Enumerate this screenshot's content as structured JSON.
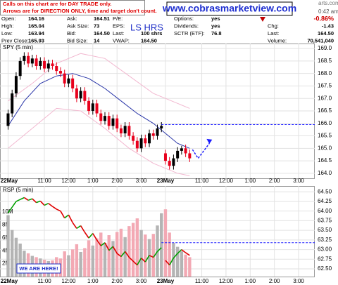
{
  "header": {
    "notes": [
      "Calls on this chart are for DAY TRADE only.",
      "Arrows are for DIRECTION ONLY, time and target don't count."
    ],
    "url": "www.cobrasmarketview.com",
    "symbol_text": "LS HRS",
    "site_fragment": "arts.com",
    "time": "0:42 am",
    "change_pct": "-0.86%",
    "columns": [
      [
        {
          "label": "Open:",
          "value": "164.16"
        },
        {
          "label": "High:",
          "value": "165.04"
        },
        {
          "label": "Low:",
          "value": "163.94"
        },
        {
          "label": "Prev Close:",
          "value": "165.93"
        }
      ],
      [
        {
          "label": "Ask:",
          "value": "164.51"
        },
        {
          "label": "Ask Size:",
          "value": "73"
        },
        {
          "label": "Bid:",
          "value": "164.50"
        },
        {
          "label": "Bid Size:",
          "value": "14"
        }
      ],
      [
        {
          "label": "P/E:"
        },
        {
          "label": "EPS:"
        },
        {
          "label": "Last:",
          "value": "100 shrs"
        },
        {
          "label": "VWAP:",
          "value": "164.50"
        }
      ],
      [
        {
          "label": "Options:",
          "value": "yes"
        },
        {
          "label": "Dividends:",
          "value": "yes"
        },
        {
          "label": "SCTR (ETF):",
          "value": "76.8"
        }
      ],
      [
        {
          "label": "Chg:",
          "value": "-1.43"
        },
        {
          "label": "Last:",
          "value": "164.50"
        },
        {
          "label": "Volume:",
          "value": "70,541,040"
        }
      ]
    ]
  },
  "chart_data": [
    {
      "type": "candlestick",
      "title": "SPY (5 min)",
      "xlim": [
        -2,
        76
      ],
      "xticks": [
        {
          "value": 0,
          "label": "22May"
        },
        {
          "value": 9,
          "label": "11:00"
        },
        {
          "value": 15,
          "label": "12:00"
        },
        {
          "value": 21,
          "label": "1:00"
        },
        {
          "value": 27,
          "label": "2:00"
        },
        {
          "value": 33,
          "label": "3:00"
        },
        {
          "value": 39,
          "label": "23May"
        },
        {
          "value": 48,
          "label": "11:00"
        },
        {
          "value": 54,
          "label": "12:00"
        },
        {
          "value": 60,
          "label": "1:00"
        },
        {
          "value": 66,
          "label": "2:00"
        },
        {
          "value": 72,
          "label": "3:00"
        }
      ],
      "ylim": [
        163.8,
        169.2
      ],
      "yticks": [
        {
          "value": 164,
          "label": "164.0"
        },
        {
          "value": 164.5,
          "label": "164.5"
        },
        {
          "value": 165,
          "label": "165.0"
        },
        {
          "value": 165.5,
          "label": "165.5"
        },
        {
          "value": 166,
          "label": "166.0"
        },
        {
          "value": 166.5,
          "label": "166.5"
        },
        {
          "value": 167,
          "label": "167.0"
        },
        {
          "value": 167.5,
          "label": "167.5"
        },
        {
          "value": 168,
          "label": "168.0"
        },
        {
          "value": 168.5,
          "label": "168.5"
        },
        {
          "value": 169,
          "label": "169.0"
        }
      ],
      "grid": true,
      "up_color": "#000000",
      "down_color": "#e8001c",
      "candles": [
        [
          165.9,
          166.55,
          165.75,
          166.4
        ],
        [
          166.4,
          167.35,
          166.25,
          167.2
        ],
        [
          167.2,
          168.05,
          167.05,
          167.9
        ],
        [
          167.9,
          168.65,
          167.75,
          168.5
        ],
        [
          168.5,
          168.85,
          168.35,
          168.7
        ],
        [
          168.7,
          168.85,
          168.25,
          168.4
        ],
        [
          168.4,
          168.75,
          168.25,
          168.6
        ],
        [
          168.6,
          168.75,
          168.15,
          168.3
        ],
        [
          168.3,
          168.65,
          168.15,
          168.5
        ],
        [
          168.5,
          168.65,
          168.05,
          168.2
        ],
        [
          168.2,
          168.55,
          168.05,
          168.4
        ],
        [
          168.4,
          168.55,
          168.15,
          168.3
        ],
        [
          168.3,
          168.45,
          167.95,
          168.1
        ],
        [
          168.1,
          168.25,
          167.85,
          168.0
        ],
        [
          168.0,
          168.15,
          167.45,
          167.6
        ],
        [
          167.6,
          167.95,
          167.45,
          167.8
        ],
        [
          167.8,
          167.95,
          167.25,
          167.4
        ],
        [
          167.4,
          167.55,
          166.85,
          167.0
        ],
        [
          167.0,
          167.45,
          166.85,
          167.3
        ],
        [
          167.3,
          167.45,
          166.75,
          166.9
        ],
        [
          166.9,
          167.05,
          166.35,
          166.5
        ],
        [
          166.5,
          166.95,
          166.35,
          166.8
        ],
        [
          166.8,
          166.95,
          166.25,
          166.4
        ],
        [
          166.4,
          166.55,
          165.95,
          166.1
        ],
        [
          166.1,
          166.45,
          165.95,
          166.3
        ],
        [
          166.3,
          166.45,
          165.75,
          165.9
        ],
        [
          165.9,
          166.35,
          165.75,
          166.2
        ],
        [
          166.2,
          166.35,
          165.65,
          165.8
        ],
        [
          165.8,
          165.95,
          165.45,
          165.6
        ],
        [
          165.6,
          166.05,
          165.45,
          165.9
        ],
        [
          165.9,
          166.05,
          165.35,
          165.5
        ],
        [
          165.5,
          165.65,
          165.15,
          165.3
        ],
        [
          165.3,
          165.45,
          164.85,
          165.0
        ],
        [
          165.0,
          165.55,
          164.85,
          165.4
        ],
        [
          165.4,
          165.55,
          165.05,
          165.2
        ],
        [
          165.2,
          165.75,
          165.05,
          165.6
        ],
        [
          165.6,
          165.75,
          165.35,
          165.5
        ],
        [
          165.5,
          165.95,
          165.35,
          165.8
        ],
        [
          165.8,
          166.05,
          165.65,
          165.9
        ],
        [
          164.8,
          164.95,
          164.35,
          164.5
        ],
        [
          164.5,
          164.65,
          164.15,
          164.3
        ],
        [
          164.3,
          164.75,
          164.15,
          164.6
        ],
        [
          164.6,
          165.05,
          164.45,
          164.9
        ],
        [
          164.9,
          165.1,
          164.75,
          165.0
        ],
        [
          165.0,
          165.15,
          164.65,
          164.8
        ],
        [
          164.8,
          164.95,
          164.45,
          164.6
        ]
      ],
      "lines": [
        {
          "color": "#2a36a8",
          "x": [
            0,
            4,
            8,
            12,
            16,
            20,
            24,
            28,
            32,
            36,
            39,
            42,
            45
          ],
          "values": [
            165.9,
            166.9,
            167.6,
            167.9,
            168.0,
            167.8,
            167.4,
            166.9,
            166.4,
            166.0,
            165.6,
            165.2,
            165.0
          ]
        },
        {
          "color": "#f2b8d0",
          "x": [
            0,
            6,
            12,
            18,
            24,
            30,
            36,
            42,
            45
          ],
          "values": [
            166.9,
            167.6,
            168.4,
            168.8,
            168.6,
            167.9,
            167.2,
            166.8,
            166.6
          ]
        },
        {
          "color": "#f2b8d0",
          "x": [
            0,
            6,
            12,
            18,
            24,
            30,
            36,
            42,
            45
          ],
          "values": [
            165.0,
            165.8,
            166.6,
            166.5,
            165.8,
            165.0,
            164.4,
            164.0,
            163.9
          ]
        }
      ],
      "reference_level": 165.95,
      "reference_start": 38,
      "reference_color": "#1a1aff"
    },
    {
      "type": "combo",
      "title": "RSP (5 min)",
      "xlim": [
        -2,
        76
      ],
      "xticks": [
        {
          "value": 0,
          "label": "22May"
        },
        {
          "value": 9,
          "label": "11:00"
        },
        {
          "value": 15,
          "label": "12:00"
        },
        {
          "value": 21,
          "label": "1:00"
        },
        {
          "value": 27,
          "label": "2:00"
        },
        {
          "value": 33,
          "label": "3:00"
        },
        {
          "value": 39,
          "label": "23May"
        },
        {
          "value": 48,
          "label": "11:00"
        },
        {
          "value": 54,
          "label": "12:00"
        },
        {
          "value": 60,
          "label": "1:00"
        },
        {
          "value": 66,
          "label": "2:00"
        },
        {
          "value": 72,
          "label": "3:00"
        }
      ],
      "ylim": [
        0,
        14000000
      ],
      "yticks": [
        {
          "value": 2000000,
          "label": "2M"
        },
        {
          "value": 4000000,
          "label": "4M"
        },
        {
          "value": 6000000,
          "label": "6M"
        },
        {
          "value": 8000000,
          "label": "8M"
        },
        {
          "value": 10000000,
          "label": "10M"
        }
      ],
      "y2lim": [
        62.3,
        64.65
      ],
      "y2ticks": [
        {
          "value": 62.5,
          "label": "62.50"
        },
        {
          "value": 62.75,
          "label": "62.75"
        },
        {
          "value": 63,
          "label": "63.00"
        },
        {
          "value": 63.25,
          "label": "63.25"
        },
        {
          "value": 63.5,
          "label": "63.50"
        },
        {
          "value": 63.75,
          "label": "63.75"
        },
        {
          "value": 64,
          "label": "64.00"
        },
        {
          "value": 64.25,
          "label": "64.25"
        },
        {
          "value": 64.5,
          "label": "64.50"
        }
      ],
      "grid": true,
      "volume": {
        "up_color": "#b4b4b4",
        "down_color": "#f3a9b4",
        "values": [
          9500000,
          7200000,
          6000000,
          5100000,
          4000000,
          3600000,
          3200000,
          3000000,
          2800000,
          2600000,
          2400000,
          2500000,
          3000000,
          2800000,
          3900000,
          3300000,
          4200000,
          5000000,
          3800000,
          4400000,
          5600000,
          4800000,
          5900000,
          6800000,
          5200000,
          6400000,
          5500000,
          6900000,
          7400000,
          6100000,
          7800000,
          8300000,
          9000000,
          7200000,
          6500000,
          5800000,
          6600000,
          7900000,
          9800000,
          10400000,
          6800000,
          5200000,
          4600000,
          3900000,
          3400000,
          3000000
        ]
      },
      "price": {
        "axis": "y2",
        "up_color": "#00a000",
        "down_color": "#e00000",
        "values": [
          63.95,
          64.1,
          64.25,
          64.3,
          64.35,
          64.28,
          64.32,
          64.22,
          64.26,
          64.15,
          64.2,
          64.12,
          64.05,
          64.0,
          63.82,
          63.9,
          63.7,
          63.55,
          63.62,
          63.45,
          63.3,
          63.42,
          63.25,
          63.1,
          63.18,
          62.98,
          63.08,
          62.9,
          62.82,
          62.95,
          62.8,
          62.7,
          62.6,
          62.78,
          62.68,
          62.85,
          62.8,
          62.95,
          63.05,
          62.72,
          62.6,
          62.78,
          62.9,
          63.0,
          62.92,
          62.85
        ]
      },
      "reference_level": 63.18,
      "reference_start": 38,
      "reference_color": "#1a1aff",
      "annotation": "WE ARE HERE!"
    }
  ]
}
